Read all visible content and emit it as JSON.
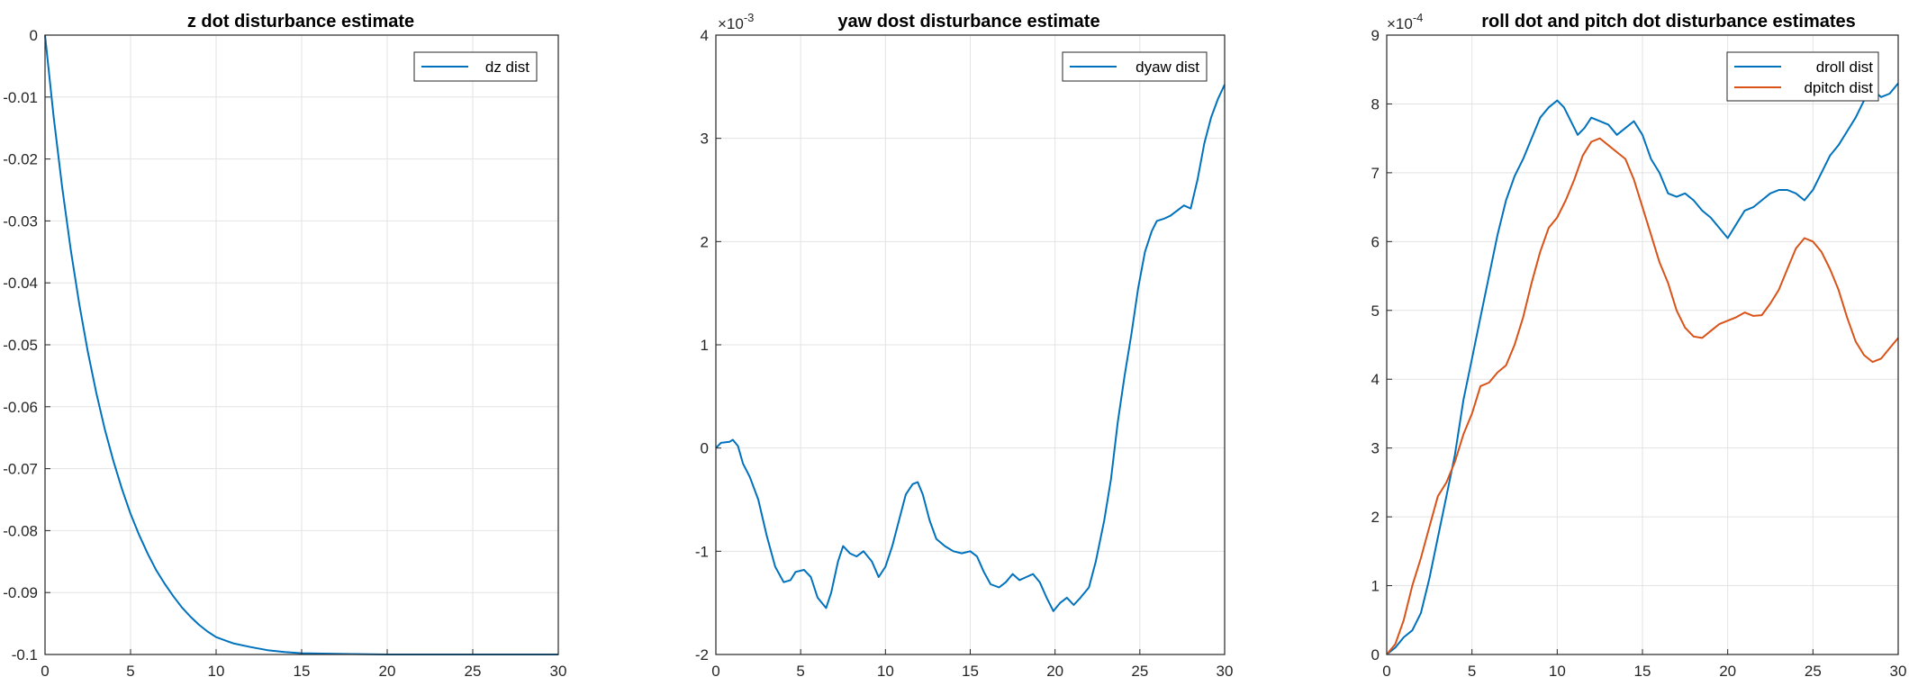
{
  "chart_data": [
    {
      "type": "line",
      "title": "z dot disturbance estimate",
      "xlabel": "",
      "ylabel": "",
      "xlim": [
        0,
        30
      ],
      "ylim": [
        -0.1,
        0
      ],
      "xticks": [
        0,
        5,
        10,
        15,
        20,
        25,
        30
      ],
      "xtick_labels": [
        "0",
        "5",
        "10",
        "15",
        "20",
        "25",
        "30"
      ],
      "yticks": [
        0,
        -0.01,
        -0.02,
        -0.03,
        -0.04,
        -0.05,
        -0.06,
        -0.07,
        -0.08,
        -0.09,
        -0.1
      ],
      "ytick_labels": [
        "0",
        "-0.01",
        "-0.02",
        "-0.03",
        "-0.04",
        "-0.05",
        "-0.06",
        "-0.07",
        "-0.08",
        "-0.09",
        "-0.1"
      ],
      "exponent_label": "",
      "grid": true,
      "legend_position": "top-right",
      "series": [
        {
          "name": "dz dist",
          "color": "#0072bd",
          "points": [
            [
              0,
              0
            ],
            [
              0.5,
              -0.0131
            ],
            [
              1,
              -0.0245
            ],
            [
              1.5,
              -0.0346
            ],
            [
              2,
              -0.0434
            ],
            [
              2.5,
              -0.0511
            ],
            [
              3,
              -0.0578
            ],
            [
              3.5,
              -0.0637
            ],
            [
              4,
              -0.0688
            ],
            [
              4.5,
              -0.0733
            ],
            [
              5,
              -0.0773
            ],
            [
              5.5,
              -0.0807
            ],
            [
              6,
              -0.0837
            ],
            [
              6.5,
              -0.0864
            ],
            [
              7,
              -0.0886
            ],
            [
              7.5,
              -0.0906
            ],
            [
              8,
              -0.0924
            ],
            [
              8.5,
              -0.0939
            ],
            [
              9,
              -0.0952
            ],
            [
              9.5,
              -0.0963
            ],
            [
              10,
              -0.0972
            ],
            [
              11,
              -0.0982
            ],
            [
              12,
              -0.0988
            ],
            [
              13,
              -0.0993
            ],
            [
              14,
              -0.0996
            ],
            [
              15,
              -0.0998
            ],
            [
              17,
              -0.0999
            ],
            [
              20,
              -0.1
            ],
            [
              25,
              -0.1
            ],
            [
              30,
              -0.1
            ]
          ]
        }
      ]
    },
    {
      "type": "line",
      "title": "yaw dost disturbance estimate",
      "xlabel": "",
      "ylabel": "",
      "xlim": [
        0,
        30
      ],
      "ylim": [
        -2,
        4
      ],
      "xticks": [
        0,
        5,
        10,
        15,
        20,
        25,
        30
      ],
      "xtick_labels": [
        "0",
        "5",
        "10",
        "15",
        "20",
        "25",
        "30"
      ],
      "yticks": [
        -2,
        -1,
        0,
        1,
        2,
        3,
        4
      ],
      "ytick_labels": [
        "-2",
        "-1",
        "0",
        "1",
        "2",
        "3",
        "4"
      ],
      "exponent_label": "×10",
      "exponent_power": "-3",
      "grid": true,
      "legend_position": "top-right",
      "series": [
        {
          "name": "dyaw dist",
          "color": "#0072bd",
          "points": [
            [
              0,
              0
            ],
            [
              0.3,
              0.05
            ],
            [
              0.8,
              0.06
            ],
            [
              1,
              0.08
            ],
            [
              1.3,
              0.02
            ],
            [
              1.6,
              -0.15
            ],
            [
              2,
              -0.28
            ],
            [
              2.5,
              -0.5
            ],
            [
              3,
              -0.85
            ],
            [
              3.5,
              -1.15
            ],
            [
              4,
              -1.3
            ],
            [
              4.4,
              -1.28
            ],
            [
              4.7,
              -1.2
            ],
            [
              5.2,
              -1.18
            ],
            [
              5.6,
              -1.25
            ],
            [
              6,
              -1.45
            ],
            [
              6.5,
              -1.55
            ],
            [
              6.8,
              -1.4
            ],
            [
              7.2,
              -1.1
            ],
            [
              7.5,
              -0.95
            ],
            [
              7.9,
              -1.02
            ],
            [
              8.3,
              -1.05
            ],
            [
              8.7,
              -1.0
            ],
            [
              9.2,
              -1.1
            ],
            [
              9.6,
              -1.25
            ],
            [
              10,
              -1.15
            ],
            [
              10.4,
              -0.95
            ],
            [
              10.8,
              -0.7
            ],
            [
              11.2,
              -0.45
            ],
            [
              11.6,
              -0.35
            ],
            [
              11.9,
              -0.33
            ],
            [
              12.2,
              -0.45
            ],
            [
              12.6,
              -0.7
            ],
            [
              13,
              -0.88
            ],
            [
              13.5,
              -0.95
            ],
            [
              14,
              -1.0
            ],
            [
              14.5,
              -1.02
            ],
            [
              15,
              -1.0
            ],
            [
              15.4,
              -1.05
            ],
            [
              15.8,
              -1.2
            ],
            [
              16.2,
              -1.32
            ],
            [
              16.7,
              -1.35
            ],
            [
              17.1,
              -1.3
            ],
            [
              17.5,
              -1.22
            ],
            [
              17.9,
              -1.28
            ],
            [
              18.3,
              -1.25
            ],
            [
              18.7,
              -1.22
            ],
            [
              19.1,
              -1.3
            ],
            [
              19.5,
              -1.45
            ],
            [
              19.9,
              -1.58
            ],
            [
              20.3,
              -1.5
            ],
            [
              20.7,
              -1.45
            ],
            [
              21.1,
              -1.52
            ],
            [
              21.5,
              -1.45
            ],
            [
              22,
              -1.35
            ],
            [
              22.4,
              -1.1
            ],
            [
              22.9,
              -0.7
            ],
            [
              23.3,
              -0.3
            ],
            [
              23.7,
              0.25
            ],
            [
              24.1,
              0.7
            ],
            [
              24.5,
              1.1
            ],
            [
              24.9,
              1.55
            ],
            [
              25.3,
              1.9
            ],
            [
              25.7,
              2.1
            ],
            [
              26,
              2.2
            ],
            [
              26.4,
              2.22
            ],
            [
              26.8,
              2.25
            ],
            [
              27.2,
              2.3
            ],
            [
              27.6,
              2.35
            ],
            [
              28,
              2.32
            ],
            [
              28.4,
              2.6
            ],
            [
              28.8,
              2.95
            ],
            [
              29.2,
              3.2
            ],
            [
              29.6,
              3.38
            ],
            [
              30,
              3.52
            ]
          ]
        }
      ]
    },
    {
      "type": "line",
      "title": "roll dot and pitch dot disturbance estimates",
      "xlabel": "",
      "ylabel": "",
      "xlim": [
        0,
        30
      ],
      "ylim": [
        0,
        9
      ],
      "xticks": [
        0,
        5,
        10,
        15,
        20,
        25,
        30
      ],
      "xtick_labels": [
        "0",
        "5",
        "10",
        "15",
        "20",
        "25",
        "30"
      ],
      "yticks": [
        0,
        1,
        2,
        3,
        4,
        5,
        6,
        7,
        8,
        9
      ],
      "ytick_labels": [
        "0",
        "1",
        "2",
        "3",
        "4",
        "5",
        "6",
        "7",
        "8",
        "9"
      ],
      "exponent_label": "×10",
      "exponent_power": "-4",
      "grid": true,
      "legend_position": "top-right",
      "series": [
        {
          "name": "droll dist",
          "color": "#0072bd",
          "points": [
            [
              0,
              0
            ],
            [
              0.5,
              0.1
            ],
            [
              1,
              0.25
            ],
            [
              1.5,
              0.35
            ],
            [
              2,
              0.6
            ],
            [
              2.5,
              1.1
            ],
            [
              3,
              1.7
            ],
            [
              3.5,
              2.3
            ],
            [
              4,
              2.9
            ],
            [
              4.5,
              3.7
            ],
            [
              5,
              4.3
            ],
            [
              5.5,
              4.9
            ],
            [
              6,
              5.5
            ],
            [
              6.5,
              6.1
            ],
            [
              7,
              6.6
            ],
            [
              7.5,
              6.95
            ],
            [
              8,
              7.2
            ],
            [
              8.5,
              7.5
            ],
            [
              9,
              7.8
            ],
            [
              9.5,
              7.95
            ],
            [
              10,
              8.05
            ],
            [
              10.4,
              7.95
            ],
            [
              10.8,
              7.75
            ],
            [
              11.2,
              7.55
            ],
            [
              11.6,
              7.65
            ],
            [
              12,
              7.8
            ],
            [
              12.5,
              7.75
            ],
            [
              13,
              7.7
            ],
            [
              13.5,
              7.55
            ],
            [
              14,
              7.65
            ],
            [
              14.5,
              7.75
            ],
            [
              15,
              7.55
            ],
            [
              15.5,
              7.2
            ],
            [
              16,
              7.0
            ],
            [
              16.5,
              6.7
            ],
            [
              17,
              6.65
            ],
            [
              17.5,
              6.7
            ],
            [
              18,
              6.6
            ],
            [
              18.5,
              6.45
            ],
            [
              19,
              6.35
            ],
            [
              19.5,
              6.2
            ],
            [
              20,
              6.05
            ],
            [
              20.5,
              6.25
            ],
            [
              21,
              6.45
            ],
            [
              21.5,
              6.5
            ],
            [
              22,
              6.6
            ],
            [
              22.5,
              6.7
            ],
            [
              23,
              6.75
            ],
            [
              23.5,
              6.75
            ],
            [
              24,
              6.7
            ],
            [
              24.5,
              6.6
            ],
            [
              25,
              6.75
            ],
            [
              25.5,
              7.0
            ],
            [
              26,
              7.25
            ],
            [
              26.5,
              7.4
            ],
            [
              27,
              7.6
            ],
            [
              27.5,
              7.8
            ],
            [
              28,
              8.05
            ],
            [
              28.5,
              8.2
            ],
            [
              29,
              8.1
            ],
            [
              29.5,
              8.15
            ],
            [
              30,
              8.3
            ]
          ]
        },
        {
          "name": "dpitch dist",
          "color": "#d95319",
          "points": [
            [
              0,
              0
            ],
            [
              0.5,
              0.15
            ],
            [
              1,
              0.5
            ],
            [
              1.5,
              1.0
            ],
            [
              2,
              1.4
            ],
            [
              2.5,
              1.85
            ],
            [
              3,
              2.3
            ],
            [
              3.5,
              2.5
            ],
            [
              4,
              2.8
            ],
            [
              4.5,
              3.2
            ],
            [
              5,
              3.5
            ],
            [
              5.5,
              3.9
            ],
            [
              6,
              3.95
            ],
            [
              6.5,
              4.1
            ],
            [
              7,
              4.2
            ],
            [
              7.5,
              4.5
            ],
            [
              8,
              4.9
            ],
            [
              8.5,
              5.4
            ],
            [
              9,
              5.85
            ],
            [
              9.5,
              6.2
            ],
            [
              10,
              6.35
            ],
            [
              10.5,
              6.6
            ],
            [
              11,
              6.9
            ],
            [
              11.5,
              7.25
            ],
            [
              12,
              7.45
            ],
            [
              12.5,
              7.5
            ],
            [
              13,
              7.4
            ],
            [
              13.5,
              7.3
            ],
            [
              14,
              7.2
            ],
            [
              14.5,
              6.9
            ],
            [
              15,
              6.5
            ],
            [
              15.5,
              6.1
            ],
            [
              16,
              5.7
            ],
            [
              16.5,
              5.4
            ],
            [
              17,
              5.0
            ],
            [
              17.5,
              4.75
            ],
            [
              18,
              4.62
            ],
            [
              18.5,
              4.6
            ],
            [
              19,
              4.7
            ],
            [
              19.5,
              4.8
            ],
            [
              20,
              4.85
            ],
            [
              20.5,
              4.9
            ],
            [
              21,
              4.97
            ],
            [
              21.5,
              4.92
            ],
            [
              22,
              4.93
            ],
            [
              22.5,
              5.1
            ],
            [
              23,
              5.3
            ],
            [
              23.5,
              5.6
            ],
            [
              24,
              5.9
            ],
            [
              24.5,
              6.05
            ],
            [
              25,
              6.0
            ],
            [
              25.5,
              5.85
            ],
            [
              26,
              5.6
            ],
            [
              26.5,
              5.3
            ],
            [
              27,
              4.9
            ],
            [
              27.5,
              4.55
            ],
            [
              28,
              4.35
            ],
            [
              28.5,
              4.25
            ],
            [
              29,
              4.3
            ],
            [
              29.5,
              4.45
            ],
            [
              30,
              4.6
            ]
          ]
        }
      ]
    }
  ]
}
